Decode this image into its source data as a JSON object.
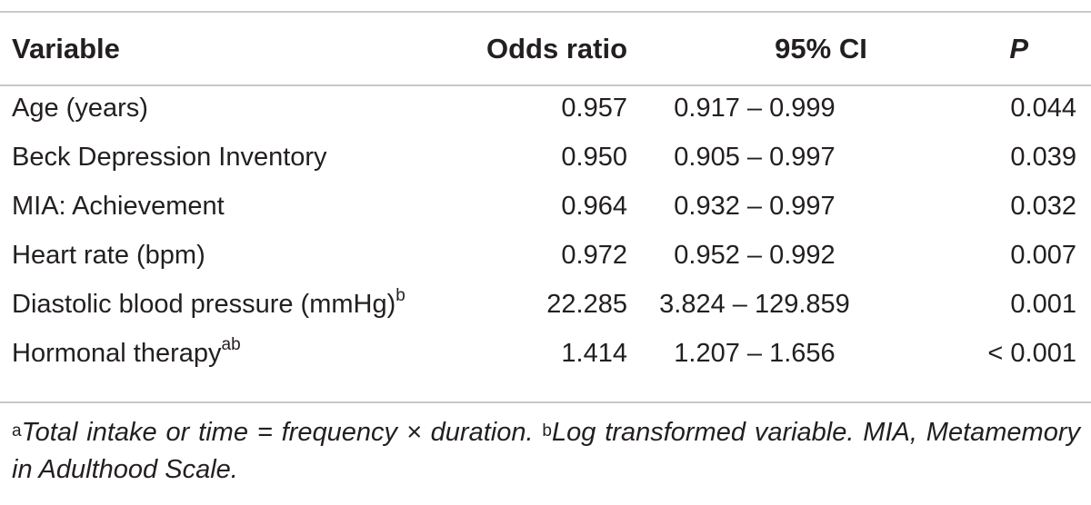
{
  "table": {
    "headers": {
      "variable": "Variable",
      "odds_ratio": "Odds ratio",
      "ci": "95% CI",
      "p": "P"
    },
    "rows": [
      {
        "variable": "Age (years)",
        "sup": "",
        "odds_ratio": "0.957",
        "ci": "0.917 – 0.999",
        "p": "0.044"
      },
      {
        "variable": "Beck Depression Inventory",
        "sup": "",
        "odds_ratio": "0.950",
        "ci": "0.905 – 0.997",
        "p": "0.039"
      },
      {
        "variable": "MIA: Achievement",
        "sup": "",
        "odds_ratio": "0.964",
        "ci": "0.932 – 0.997",
        "p": "0.032"
      },
      {
        "variable": "Heart rate (bpm)",
        "sup": "",
        "odds_ratio": "0.972",
        "ci": "0.952 – 0.992",
        "p": "0.007"
      },
      {
        "variable": "Diastolic blood pressure (mmHg)",
        "sup": "b",
        "odds_ratio": "22.285",
        "ci": "3.824 – 129.859",
        "p": "0.001"
      },
      {
        "variable": "Hormonal therapy",
        "sup": "ab",
        "odds_ratio": "1.414",
        "ci": "1.207 – 1.656",
        "p": "< 0.001"
      }
    ]
  },
  "footnote": {
    "a_mark": "a",
    "a_text": "Total intake or time = frequency × duration. ",
    "b_mark": "b",
    "b_text": "Log transformed variable. MIA, Metamemory in Adulthood Scale."
  }
}
